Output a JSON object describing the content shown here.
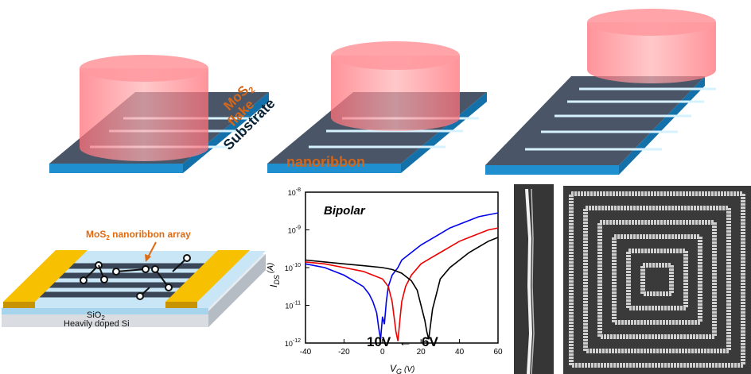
{
  "top_row": {
    "panel1": {
      "material_sub": "2",
      "material_prefix": "MoS",
      "flake_label": "flake",
      "substrate_label": "Substrate"
    },
    "panel2": {
      "nanoribbon_label": "nanoribbon"
    }
  },
  "device": {
    "array_label_prefix": "MoS",
    "array_label_sub": "2",
    "array_label_suffix": " nanoribbon array",
    "oxide_prefix": "SiO",
    "oxide_sub": "2",
    "substrate_label": "Heavily doped Si",
    "colors": {
      "electrode": "#f0b400",
      "channel": "#3a4657",
      "oxide": "#c8e6f5",
      "si": "#d9dde2",
      "annotation": "#e06a10"
    }
  },
  "chart_data": {
    "type": "line",
    "title": "Bipolar",
    "xlabel": "V",
    "xlabel_sub": "G",
    "xlabel_unit": "(V)",
    "ylabel": "I",
    "ylabel_sub": "DS",
    "ylabel_unit": "(A)",
    "xlim": [
      -40,
      60
    ],
    "ylim_log10": [
      -12,
      -8
    ],
    "xticks": [
      "-40",
      "-20",
      "0",
      "20",
      "40",
      "60"
    ],
    "yticks": [
      {
        "base": "10",
        "exp": "-12",
        "v": -12
      },
      {
        "base": "10",
        "exp": "-11",
        "v": -11
      },
      {
        "base": "10",
        "exp": "-10",
        "v": -10
      },
      {
        "base": "10",
        "exp": "-9",
        "v": -9
      },
      {
        "base": "10",
        "exp": "-8",
        "v": -8
      }
    ],
    "annotations": {
      "left_voltage": "10V",
      "right_voltage": "6V",
      "arrow": "←"
    },
    "series": [
      {
        "color": "#0000ee",
        "x": [
          -40,
          -30,
          -20,
          -15,
          -10,
          -7,
          -5,
          -3,
          -2,
          -1,
          0,
          1,
          2,
          3,
          5,
          8,
          10,
          15,
          20,
          25,
          30,
          35,
          40,
          45,
          50,
          55,
          60
        ],
        "log10_y": [
          -9.9,
          -10.0,
          -10.2,
          -10.35,
          -10.5,
          -10.7,
          -10.9,
          -11.2,
          -11.6,
          -11.9,
          -11.3,
          -11.5,
          -10.9,
          -10.5,
          -10.2,
          -10.0,
          -9.8,
          -9.6,
          -9.4,
          -9.25,
          -9.1,
          -8.95,
          -8.85,
          -8.75,
          -8.65,
          -8.6,
          -8.55
        ]
      },
      {
        "color": "#ee0000",
        "x": [
          -40,
          -30,
          -20,
          -10,
          -5,
          0,
          3,
          5,
          6,
          7,
          8,
          9,
          10,
          12,
          15,
          20,
          25,
          30,
          35,
          40,
          45,
          50,
          55,
          60
        ],
        "log10_y": [
          -9.85,
          -9.9,
          -10.0,
          -10.1,
          -10.2,
          -10.3,
          -10.5,
          -10.9,
          -11.3,
          -11.7,
          -11.95,
          -11.4,
          -10.9,
          -10.5,
          -10.2,
          -9.9,
          -9.75,
          -9.6,
          -9.45,
          -9.3,
          -9.2,
          -9.1,
          -9.0,
          -8.95
        ]
      },
      {
        "color": "#000000",
        "x": [
          -40,
          -30,
          -20,
          -10,
          0,
          5,
          10,
          15,
          18,
          20,
          22,
          23,
          24,
          25,
          26,
          28,
          30,
          35,
          40,
          45,
          50,
          55,
          60
        ],
        "log10_y": [
          -9.8,
          -9.85,
          -9.9,
          -9.95,
          -10.0,
          -10.05,
          -10.15,
          -10.35,
          -10.6,
          -11.0,
          -11.4,
          -11.7,
          -11.9,
          -11.5,
          -11.1,
          -10.7,
          -10.3,
          -10.0,
          -9.8,
          -9.6,
          -9.45,
          -9.3,
          -9.2
        ]
      }
    ]
  }
}
